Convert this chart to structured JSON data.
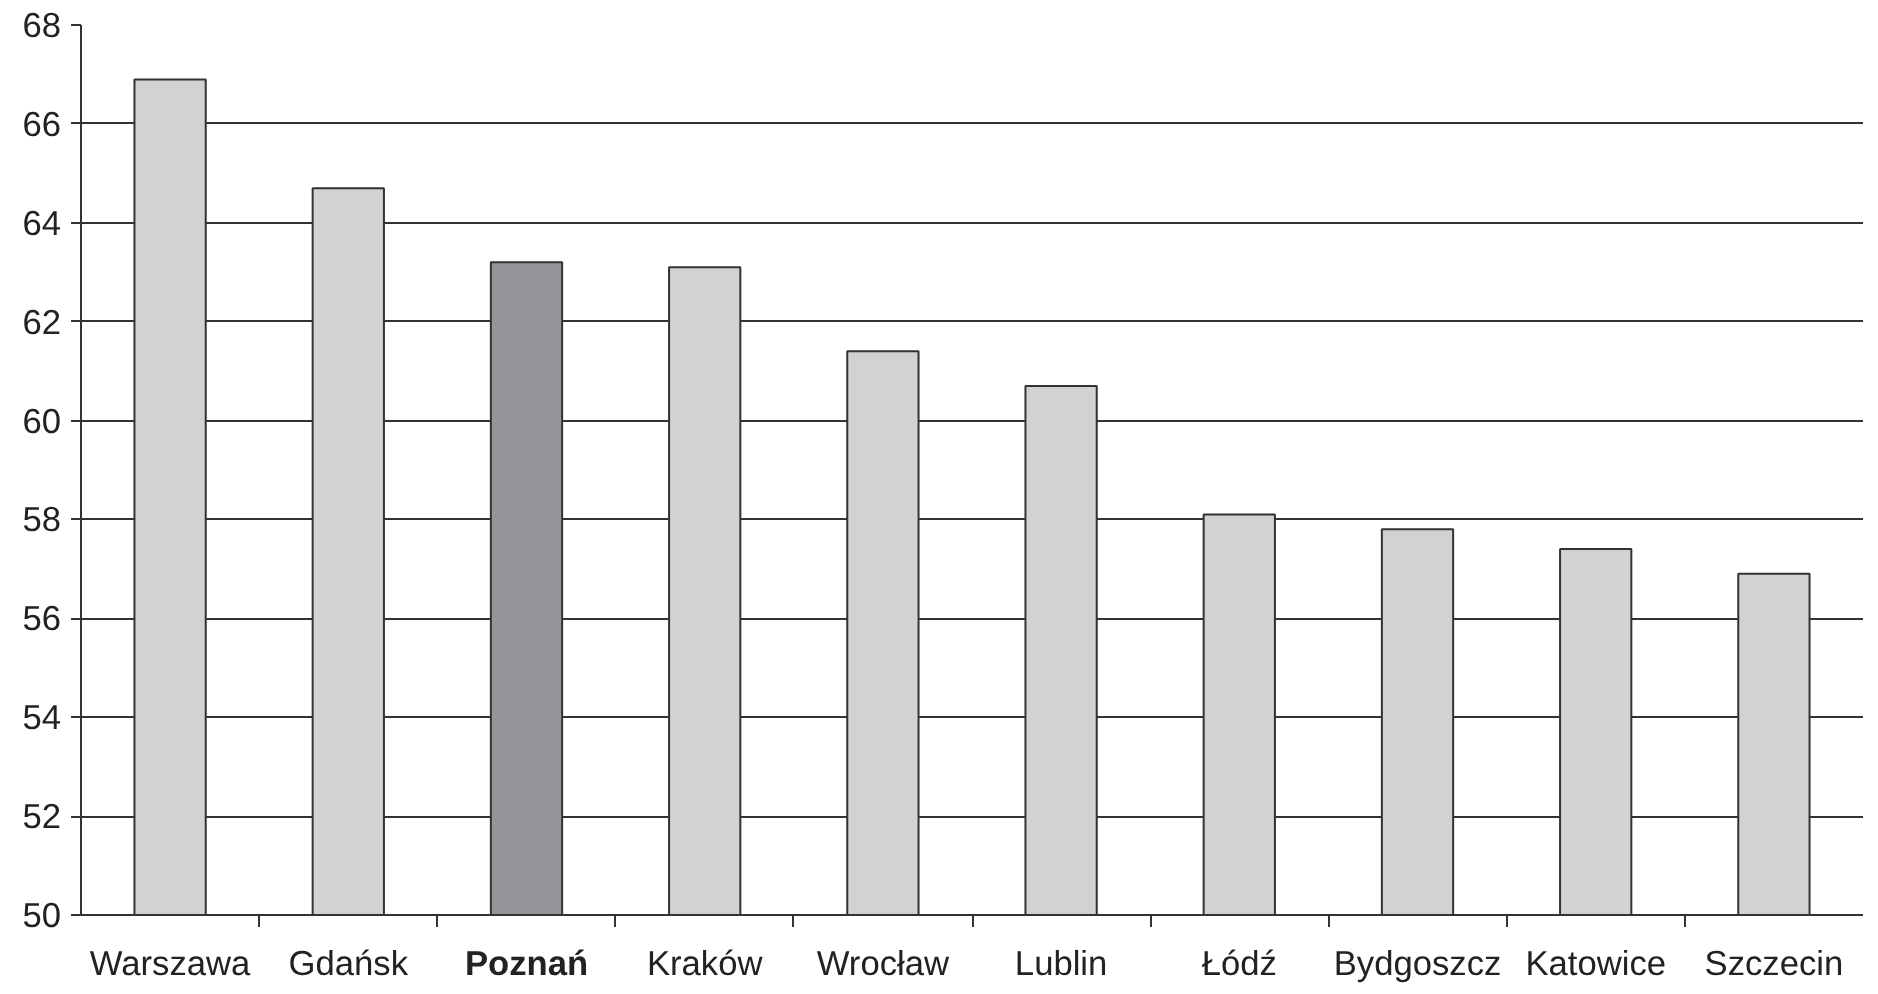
{
  "chart_data": {
    "type": "bar",
    "categories": [
      "Warszawa",
      "Gdańsk",
      "Poznań",
      "Kraków",
      "Wrocław",
      "Lublin",
      "Łódź",
      "Bydgoszcz",
      "Katowice",
      "Szczecin"
    ],
    "values": [
      66.9,
      64.7,
      63.2,
      63.1,
      61.4,
      60.7,
      58.1,
      57.8,
      57.4,
      56.9
    ],
    "colors": [
      "#d1d2d4",
      "#d1d2d4",
      "#939598",
      "#d1d2d4",
      "#d1d2d4",
      "#d1d2d4",
      "#d1d2d4",
      "#d1d2d4",
      "#d1d2d4",
      "#d1d2d4"
    ],
    "ylim": [
      50,
      68
    ],
    "yticks": [
      50,
      52,
      54,
      56,
      58,
      60,
      62,
      64,
      66,
      68
    ],
    "grid": "y"
  }
}
